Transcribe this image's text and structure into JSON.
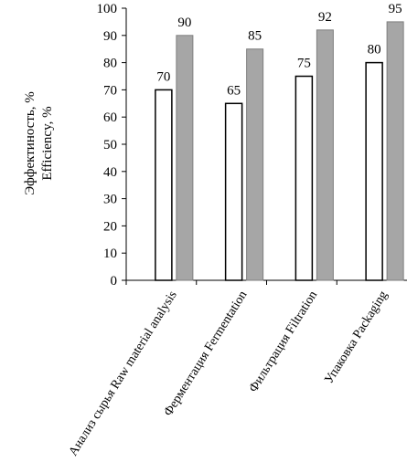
{
  "chart_data": {
    "type": "bar",
    "ylabel_lines": [
      "Эффектиность, %",
      "Efficiency, %"
    ],
    "ylim": [
      0,
      100
    ],
    "yticks": [
      "0",
      "10",
      "20",
      "30",
      "40",
      "50",
      "60",
      "70",
      "80",
      "90",
      "100"
    ],
    "grid": false,
    "categories": [
      "Анализ сырья Raw material analysis",
      "Ферментация Fermentation",
      "Фильтрация Filtration",
      "Упаковка Packaging"
    ],
    "series": [
      {
        "values": [
          70,
          65,
          75,
          80
        ],
        "color": "#ffffff",
        "stroke": "#000000"
      },
      {
        "values": [
          90,
          85,
          92,
          95
        ],
        "color": "#a6a6a6",
        "stroke": "#7f7f7f"
      }
    ]
  }
}
